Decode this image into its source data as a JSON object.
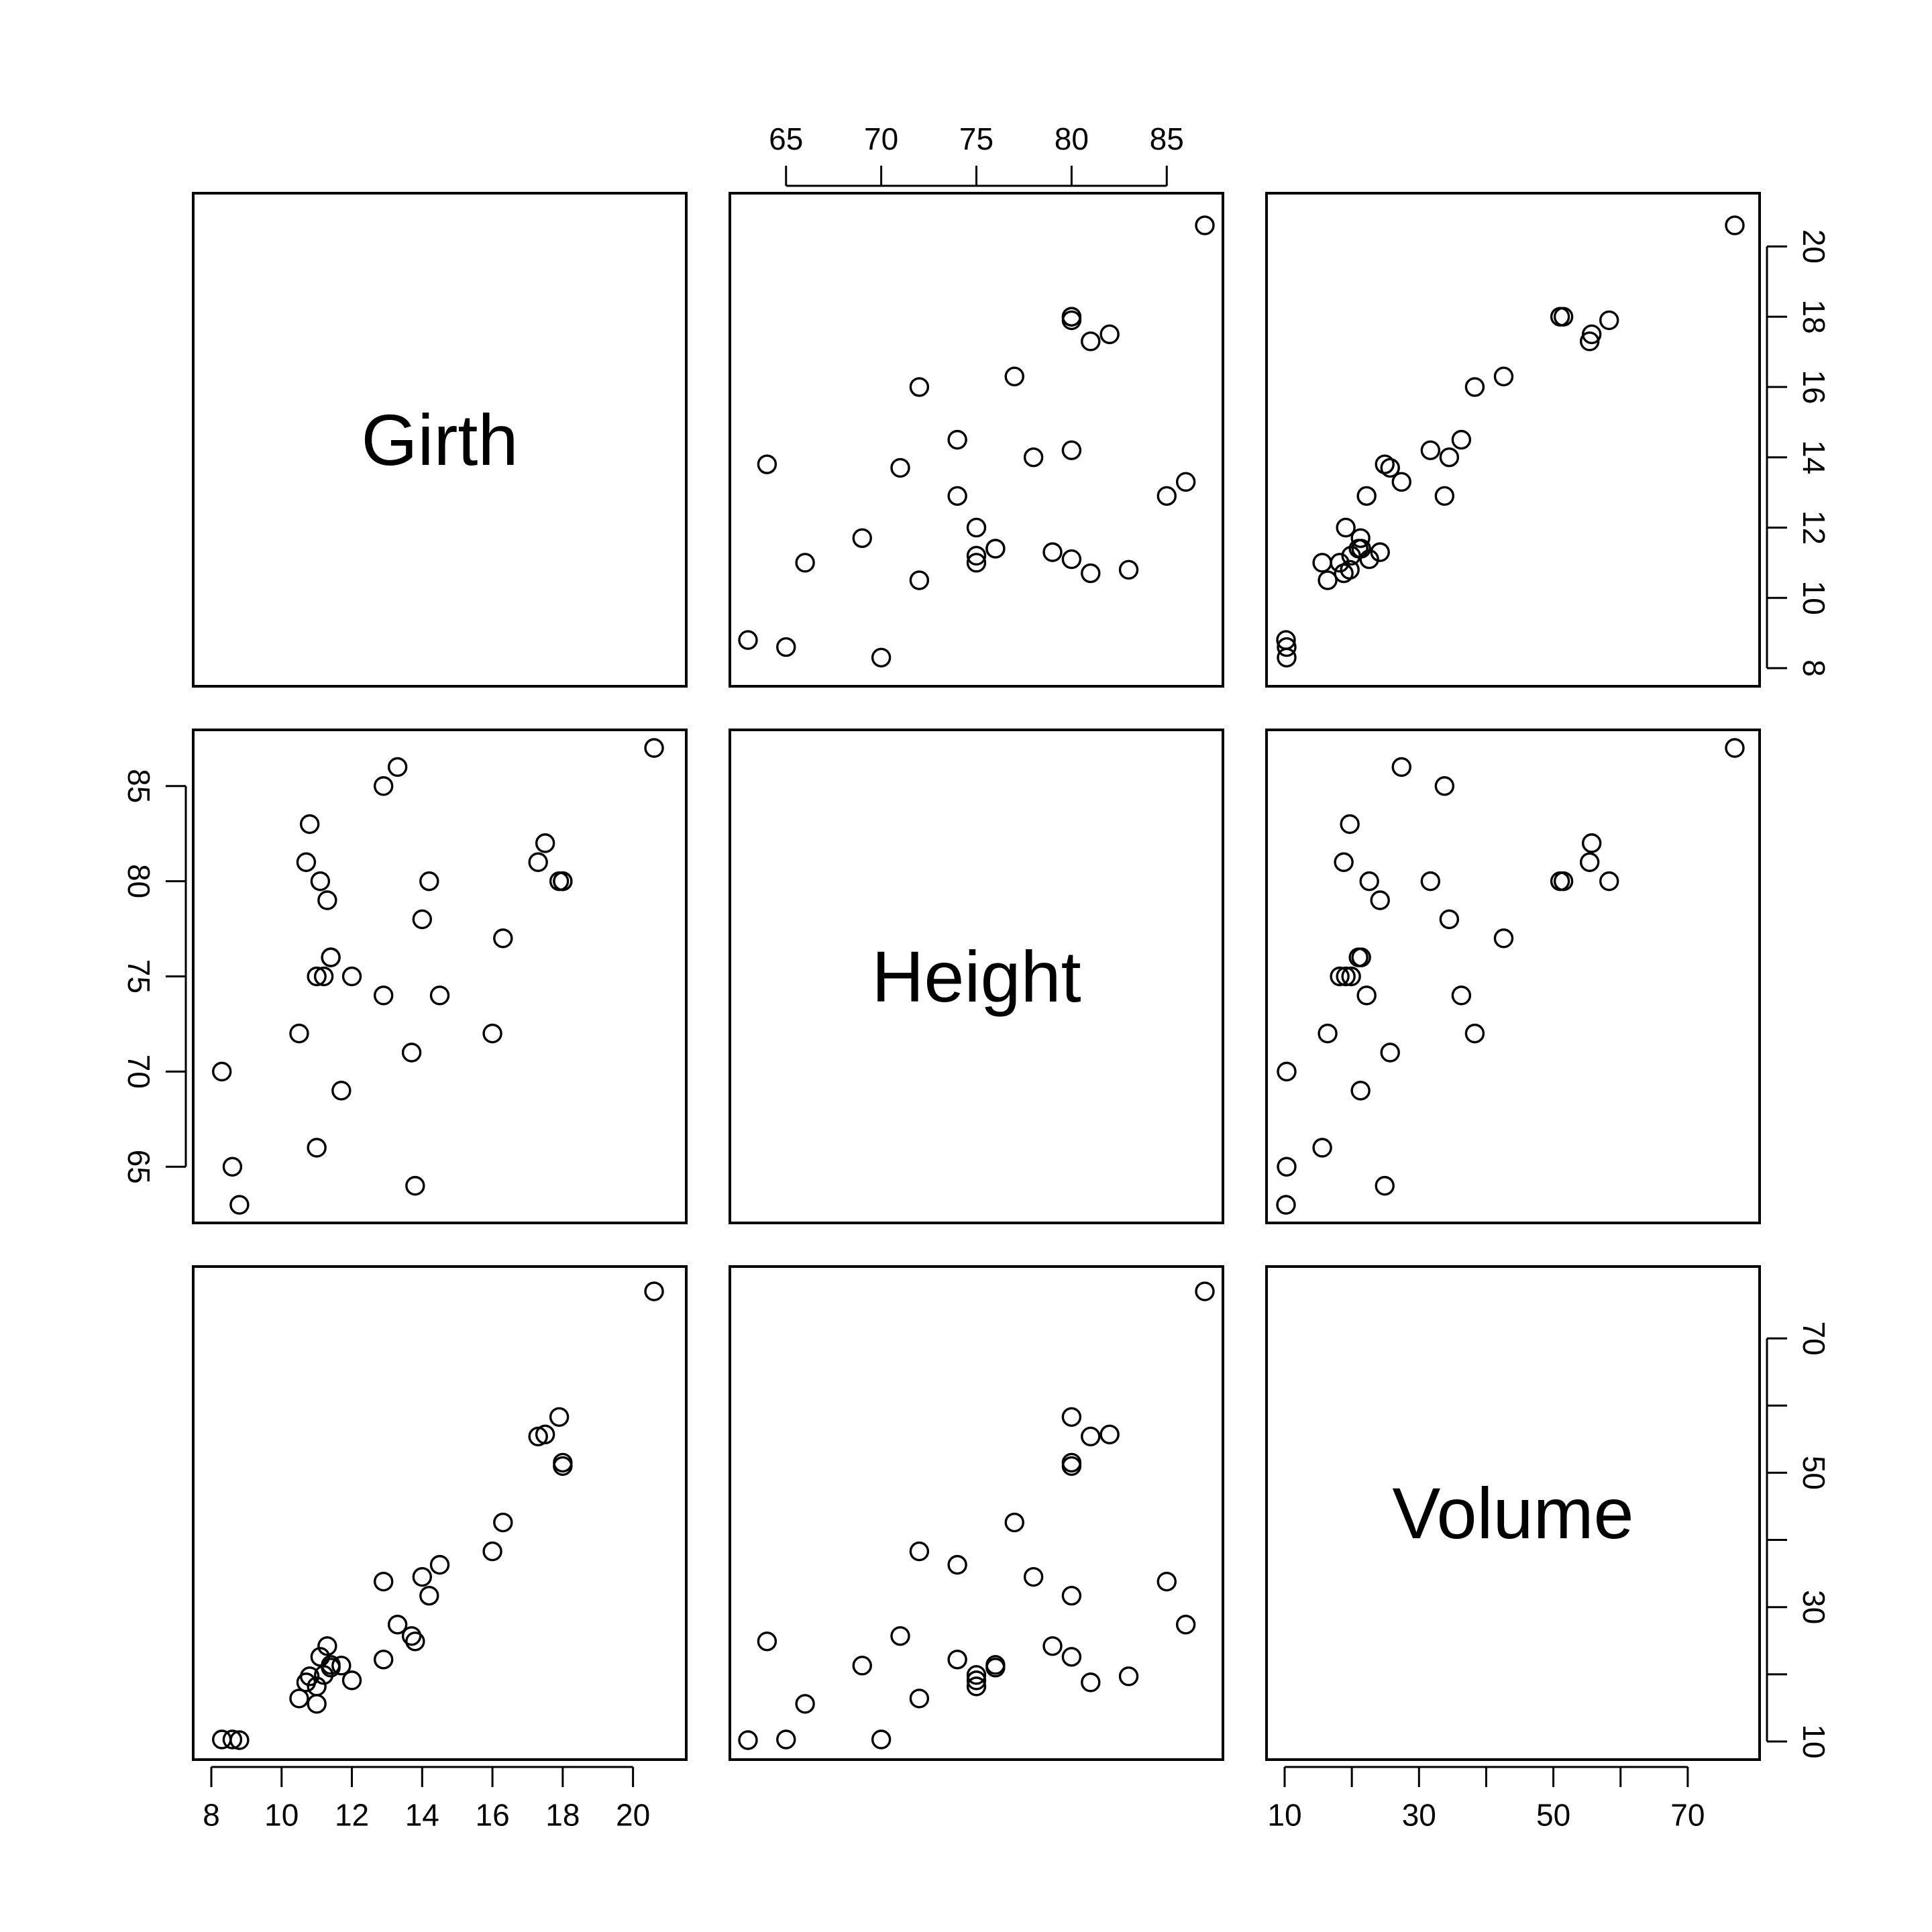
{
  "chart_data": {
    "type": "scatter",
    "kind": "scatterplot-matrix",
    "title": "",
    "point_shape": "open-circle",
    "grid": false,
    "variables": [
      {
        "name": "Girth",
        "range": [
          8,
          21
        ],
        "ticks": [
          8,
          10,
          12,
          14,
          16,
          18,
          20
        ]
      },
      {
        "name": "Height",
        "range": [
          63,
          87
        ],
        "ticks": [
          65,
          70,
          75,
          80,
          85
        ]
      },
      {
        "name": "Volume",
        "range": [
          10,
          78
        ],
        "ticks": [
          10,
          20,
          30,
          40,
          50,
          60,
          70
        ],
        "tick_labels": [
          10,
          30,
          50,
          70
        ]
      }
    ],
    "observations": {
      "Girth": [
        8.3,
        8.6,
        8.8,
        10.5,
        10.7,
        10.8,
        11.0,
        11.0,
        11.1,
        11.2,
        11.3,
        11.4,
        11.4,
        11.7,
        12.0,
        12.9,
        12.9,
        13.3,
        13.7,
        13.8,
        14.0,
        14.2,
        14.5,
        16.0,
        16.3,
        17.3,
        17.5,
        17.9,
        18.0,
        18.0,
        20.6
      ],
      "Height": [
        70,
        65,
        63,
        72,
        81,
        83,
        66,
        75,
        80,
        75,
        79,
        76,
        76,
        69,
        75,
        74,
        85,
        86,
        71,
        64,
        78,
        80,
        74,
        72,
        77,
        81,
        82,
        80,
        80,
        80,
        87
      ],
      "Volume": [
        10.3,
        10.3,
        10.2,
        16.4,
        18.8,
        19.7,
        15.6,
        18.2,
        22.6,
        19.9,
        24.2,
        21.0,
        21.4,
        21.3,
        19.1,
        22.2,
        33.8,
        27.4,
        25.7,
        24.9,
        34.5,
        31.7,
        36.3,
        38.3,
        42.6,
        55.4,
        55.7,
        58.3,
        51.5,
        51.0,
        77.0
      ]
    },
    "axes": {
      "top": {
        "panel_column": 1,
        "variable": "Height"
      },
      "right": [
        {
          "panel_row": 0,
          "variable": "Girth"
        },
        {
          "panel_row": 2,
          "variable": "Volume"
        }
      ],
      "left": {
        "panel_row": 1,
        "variable": "Height"
      },
      "bottom": [
        {
          "panel_column": 0,
          "variable": "Girth"
        },
        {
          "panel_column": 2,
          "variable": "Volume"
        }
      ]
    }
  }
}
